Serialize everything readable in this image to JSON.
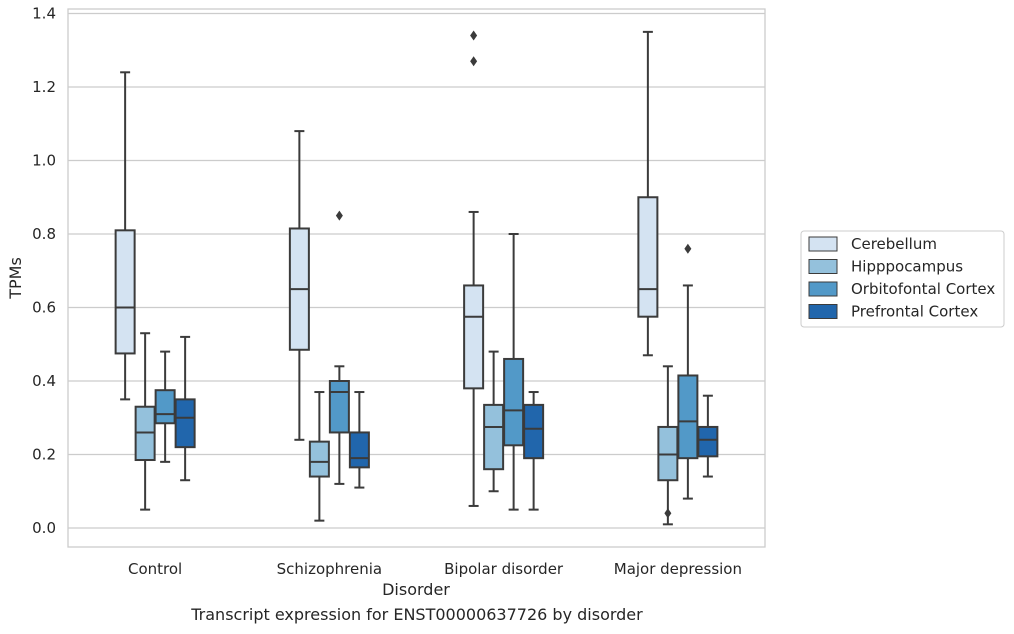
{
  "chart_data": {
    "type": "box",
    "xlabel": "Disorder",
    "ylabel": "TPMs",
    "caption": "Transcript expression for ENST00000637726 by disorder",
    "ylim": [
      -0.055,
      1.42
    ],
    "yticks": [
      "0.0",
      "0.2",
      "0.4",
      "0.6",
      "0.8",
      "1.0",
      "1.2",
      "1.4"
    ],
    "ytick_values": [
      0.0,
      0.2,
      0.4,
      0.6,
      0.8,
      1.0,
      1.2,
      1.4
    ],
    "grid": true,
    "legend_position": "right",
    "categories": [
      "Control",
      "Schizophrenia",
      "Bipolar disorder",
      "Major depression"
    ],
    "series": [
      {
        "name": "Cerebellum",
        "color": "#d4e3f2",
        "boxes": [
          {
            "whisker_low": 0.35,
            "q1": 0.475,
            "median": 0.6,
            "q3": 0.81,
            "whisker_high": 1.24,
            "outliers": []
          },
          {
            "whisker_low": 0.24,
            "q1": 0.485,
            "median": 0.65,
            "q3": 0.815,
            "whisker_high": 1.08,
            "outliers": []
          },
          {
            "whisker_low": 0.06,
            "q1": 0.38,
            "median": 0.575,
            "q3": 0.66,
            "whisker_high": 0.86,
            "outliers": [
              1.27,
              1.34
            ]
          },
          {
            "whisker_low": 0.47,
            "q1": 0.575,
            "median": 0.65,
            "q3": 0.9,
            "whisker_high": 1.35,
            "outliers": []
          }
        ]
      },
      {
        "name": "Hipppocampus",
        "color": "#94c1dc",
        "boxes": [
          {
            "whisker_low": 0.05,
            "q1": 0.185,
            "median": 0.26,
            "q3": 0.33,
            "whisker_high": 0.53,
            "outliers": []
          },
          {
            "whisker_low": 0.02,
            "q1": 0.14,
            "median": 0.18,
            "q3": 0.235,
            "whisker_high": 0.37,
            "outliers": []
          },
          {
            "whisker_low": 0.1,
            "q1": 0.16,
            "median": 0.275,
            "q3": 0.335,
            "whisker_high": 0.48,
            "outliers": []
          },
          {
            "whisker_low": 0.01,
            "q1": 0.13,
            "median": 0.2,
            "q3": 0.275,
            "whisker_high": 0.44,
            "outliers": [
              0.04
            ]
          }
        ]
      },
      {
        "name": "Orbitofontal Cortex",
        "color": "#5299c8",
        "boxes": [
          {
            "whisker_low": 0.18,
            "q1": 0.285,
            "median": 0.31,
            "q3": 0.375,
            "whisker_high": 0.48,
            "outliers": []
          },
          {
            "whisker_low": 0.12,
            "q1": 0.26,
            "median": 0.37,
            "q3": 0.4,
            "whisker_high": 0.44,
            "outliers": [
              0.85
            ]
          },
          {
            "whisker_low": 0.05,
            "q1": 0.225,
            "median": 0.32,
            "q3": 0.46,
            "whisker_high": 0.8,
            "outliers": []
          },
          {
            "whisker_low": 0.08,
            "q1": 0.19,
            "median": 0.29,
            "q3": 0.415,
            "whisker_high": 0.66,
            "outliers": [
              0.76
            ]
          }
        ]
      },
      {
        "name": "Prefrontal Cortex",
        "color": "#2166ac",
        "boxes": [
          {
            "whisker_low": 0.13,
            "q1": 0.22,
            "median": 0.3,
            "q3": 0.35,
            "whisker_high": 0.52,
            "outliers": []
          },
          {
            "whisker_low": 0.11,
            "q1": 0.165,
            "median": 0.19,
            "q3": 0.26,
            "whisker_high": 0.37,
            "outliers": []
          },
          {
            "whisker_low": 0.05,
            "q1": 0.19,
            "median": 0.27,
            "q3": 0.335,
            "whisker_high": 0.37,
            "outliers": []
          },
          {
            "whisker_low": 0.14,
            "q1": 0.195,
            "median": 0.24,
            "q3": 0.275,
            "whisker_high": 0.36,
            "outliers": []
          }
        ]
      }
    ]
  }
}
